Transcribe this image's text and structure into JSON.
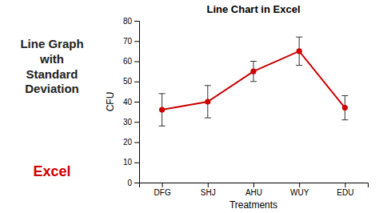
{
  "chart_data": {
    "type": "line",
    "title": "Line Chart in Excel",
    "annotations": [
      "Line Graph\nwith\nStandard\nDeviation",
      "Excel"
    ],
    "categories": [
      "DFG",
      "SHJ",
      "AHU",
      "WUY",
      "EDU"
    ],
    "values": [
      36,
      40,
      55,
      65,
      37
    ],
    "errors": [
      8,
      8,
      5,
      7,
      6
    ],
    "xlabel": "Treatments",
    "ylabel": "CFU",
    "ylim": [
      0,
      80
    ],
    "yticks": [
      0,
      10,
      20,
      30,
      40,
      50,
      60,
      70,
      80
    ],
    "color": "#cc0000",
    "marker": "circle",
    "grid": false
  }
}
